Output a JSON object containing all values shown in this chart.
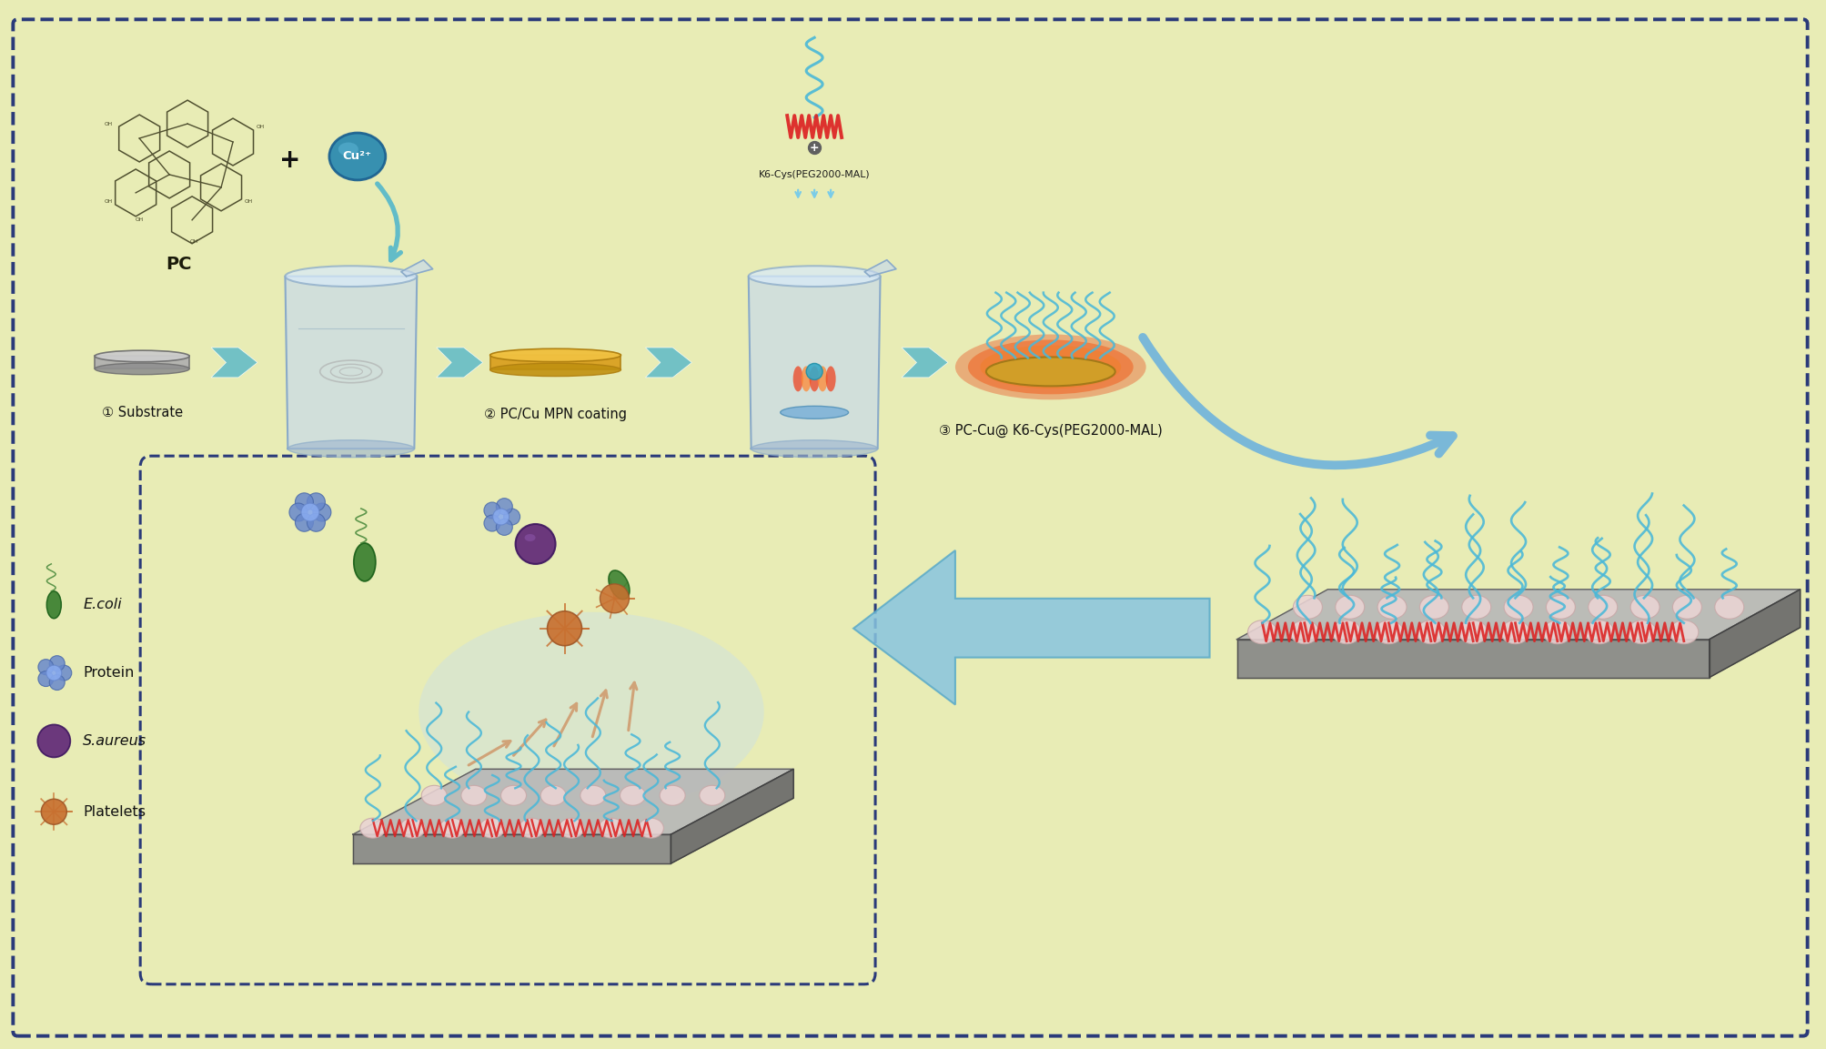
{
  "background_color": "#e8ecb5",
  "border_color": "#2a3a7a",
  "fig_width": 20.08,
  "fig_height": 11.53,
  "labels": {
    "substrate": "① Substrate",
    "mpc_coating": "② PC/Cu MPN coating",
    "pc_cu_peg": "③ PC-Cu@ K6-Cys(PEG2000-MAL)",
    "pc": "PC",
    "cu2p": "Cu²⁺",
    "k6_label": "K6-Cys(PEG2000-MAL)",
    "ecoli": "E.coli",
    "protein": "Protein",
    "saureus": "S.aureus",
    "platelets": "Platelets"
  },
  "colors": {
    "bg": "#e8ecb5",
    "border": "#2a3a7a",
    "beaker_face": "#c5d8ee",
    "beaker_edge": "#8aaac8",
    "arrow_teal": "#62bcc8",
    "arrow_blue_big": "#7ab8d8",
    "peg_blue": "#4ab8d8",
    "peptide_red": "#dd2222",
    "slab_top": "#b8b8b8",
    "slab_front": "#888888",
    "slab_right": "#6a6a6a",
    "bump_face": "#ead4d4",
    "bump_edge": "#c8a8a8",
    "cu_ball": "#2888b0",
    "gold_top": "#f0c040",
    "gold_side": "#c09010",
    "gold_edge": "#b08010",
    "mol_edge": "#505030",
    "repel_orange": "#d88030",
    "ecoli_green": "#3a8030",
    "protein_blue": "#6888cc",
    "saureus_purple": "#602878",
    "platelet_orange": "#c87030",
    "dome_blue": "#b8d8f0",
    "flame_red": "#ee4422",
    "flame_orange": "#ff8833"
  }
}
